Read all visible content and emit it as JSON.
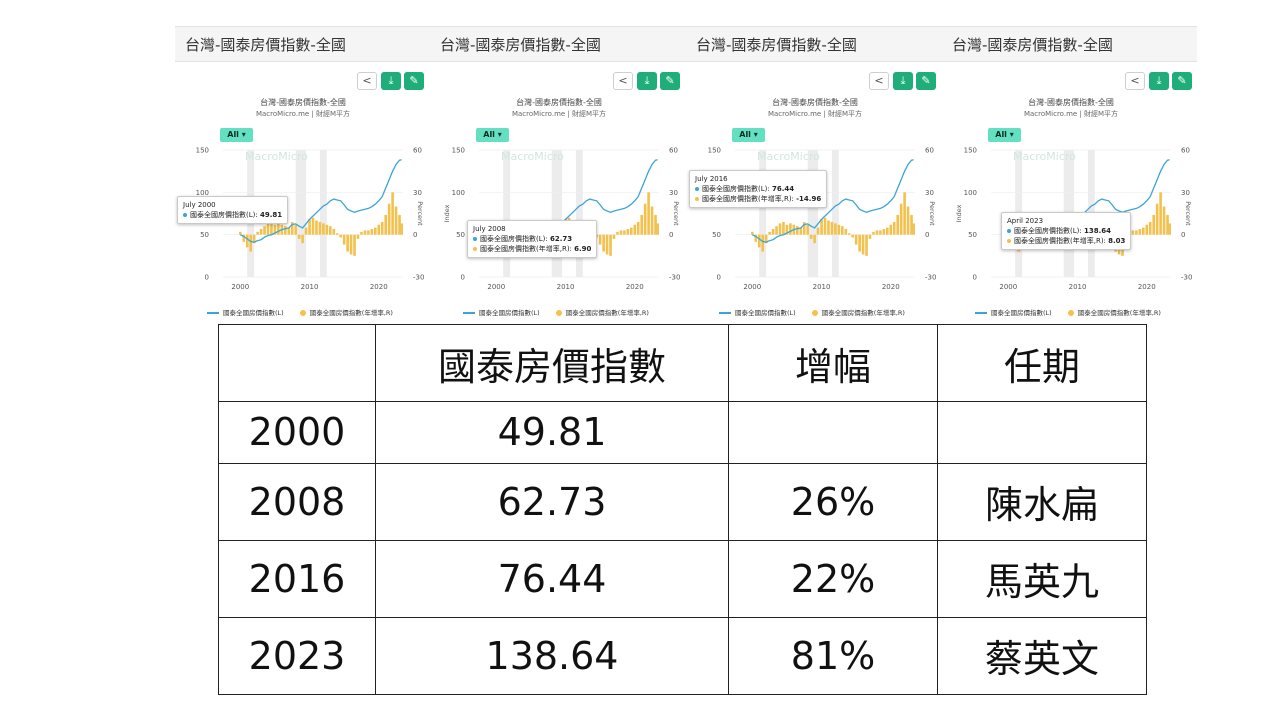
{
  "panels": [
    {
      "header": "台灣-國泰房價指數-全國",
      "title": "台灣-國泰房價指數-全國",
      "source": "MacroMicro.me | 財經M平方",
      "all_label": "All ▾",
      "watermark": "MacroMicro",
      "tooltip": {
        "date": "July 2000",
        "line1_label": "國泰全國房價指數(L):",
        "line1_value": "49.81"
      },
      "legend": {
        "line": "國泰全國房價指數(L)",
        "bar": "國泰全國房價指數(年增率,R)"
      },
      "left_axis_label": "",
      "right_axis_label": "Percent"
    },
    {
      "header": "台灣-國泰房價指數-全國",
      "title": "台灣-國泰房價指數-全國",
      "source": "MacroMicro.me | 財經M平方",
      "all_label": "All ▾",
      "watermark": "MacroMicro",
      "tooltip": {
        "date": "July 2008",
        "line1_label": "國泰全國房價指數(L):",
        "line1_value": "62.73",
        "line2_label": "國泰全國房價指數(年增率,R):",
        "line2_value": "6.90"
      },
      "legend": {
        "line": "國泰全國房價指數(L)",
        "bar": "國泰全國房價指數(年增率,R)"
      },
      "left_axis_label": "Index",
      "right_axis_label": "Percent"
    },
    {
      "header": "台灣-國泰房價指數-全國",
      "title": "台灣-國泰房價指數-全國",
      "source": "MacroMicro.me | 財經M平方",
      "all_label": "All ▾",
      "watermark": "MacroMicro",
      "tooltip": {
        "date": "July 2016",
        "line1_label": "國泰全國房價指數(L):",
        "line1_value": "76.44",
        "line2_label": "國泰全國房價指數(年增率,R):",
        "line2_value": "-14.96"
      },
      "legend": {
        "line": "國泰全國房價指數(L)",
        "bar": "國泰全國房價指數(年增率,R)"
      },
      "left_axis_label": "",
      "right_axis_label": "Percent"
    },
    {
      "header": "台灣-國泰房價指數-全國",
      "title": "台灣-國泰房價指數-全國",
      "source": "MacroMicro.me | 財經M平方",
      "all_label": "All ▾",
      "watermark": "MacroMicro",
      "tooltip": {
        "date": "April 2023",
        "line1_label": "國泰全國房價指數(L):",
        "line1_value": "138.64",
        "line2_label": "國泰全國房價指數(年增率,R):",
        "line2_value": "8.03"
      },
      "legend": {
        "line": "國泰全國房價指數(L)",
        "bar": "國泰全國房價指數(年增率,R)"
      },
      "left_axis_label": "Index",
      "right_axis_label": "Percent"
    }
  ],
  "table": {
    "header": [
      "",
      "國泰房價指數",
      "增幅",
      "任期"
    ],
    "rows": [
      [
        "2000",
        "49.81",
        "",
        ""
      ],
      [
        "2008",
        "62.73",
        "26%",
        "陳水扁"
      ],
      [
        "2016",
        "76.44",
        "22%",
        "馬英九"
      ],
      [
        "2023",
        "138.64",
        "81%",
        "蔡英文"
      ]
    ]
  },
  "chart_data": {
    "type": "line",
    "title": "台灣-國泰房價指數-全國",
    "x_ticks": [
      2000,
      2010,
      2020
    ],
    "left_ticks": [
      0,
      50,
      100,
      150
    ],
    "right_ticks": [
      -30,
      0,
      30,
      60
    ],
    "ylim_left": [
      0,
      150
    ],
    "ylim_right": [
      -30,
      60
    ],
    "series": [
      {
        "name": "國泰全國房價指數(L)",
        "axis": "left",
        "color": "#3aa6d8",
        "x": [
          2000.0,
          2000.5,
          2001.0,
          2001.5,
          2002.0,
          2002.5,
          2003.0,
          2003.5,
          2004.0,
          2004.5,
          2005.0,
          2005.5,
          2006.0,
          2006.5,
          2007.0,
          2007.5,
          2008.0,
          2008.5,
          2009.0,
          2009.5,
          2010.0,
          2010.5,
          2011.0,
          2011.5,
          2012.0,
          2012.5,
          2013.0,
          2013.5,
          2014.0,
          2014.5,
          2015.0,
          2015.5,
          2016.0,
          2016.5,
          2017.0,
          2017.5,
          2018.0,
          2018.5,
          2019.0,
          2019.5,
          2020.0,
          2020.5,
          2021.0,
          2021.5,
          2022.0,
          2022.5,
          2023.0,
          2023.3
        ],
        "y": [
          49.8,
          48,
          45,
          42,
          41,
          43,
          44,
          47,
          49,
          50,
          52,
          54,
          56,
          57,
          58,
          62,
          62.7,
          60,
          58,
          63,
          68,
          72,
          76,
          80,
          84,
          86,
          90,
          92,
          91,
          90,
          85,
          80,
          78,
          76.4,
          78,
          79,
          80,
          81,
          83,
          86,
          90,
          95,
          105,
          115,
          125,
          133,
          138,
          138.6
        ]
      },
      {
        "name": "國泰全國房價指數(年增率,R)",
        "axis": "right",
        "color": "#f2c14e",
        "type": "bar",
        "x": [
          2000.0,
          2000.5,
          2001.0,
          2001.5,
          2002.0,
          2002.5,
          2003.0,
          2003.5,
          2004.0,
          2004.5,
          2005.0,
          2005.5,
          2006.0,
          2006.5,
          2007.0,
          2007.5,
          2008.0,
          2008.5,
          2009.0,
          2009.5,
          2010.0,
          2010.5,
          2011.0,
          2011.5,
          2012.0,
          2012.5,
          2013.0,
          2013.5,
          2014.0,
          2014.5,
          2015.0,
          2015.5,
          2016.0,
          2016.5,
          2017.0,
          2017.5,
          2018.0,
          2018.5,
          2019.0,
          2019.5,
          2020.0,
          2020.5,
          2021.0,
          2021.5,
          2022.0,
          2022.5,
          2023.0,
          2023.3
        ],
        "y": [
          2,
          -5,
          -9,
          -12,
          -6,
          2,
          4,
          6,
          8,
          9,
          7,
          8,
          7,
          6,
          5,
          9,
          6.9,
          -3,
          -6,
          5,
          11,
          12,
          10,
          9,
          8,
          7,
          6,
          4,
          1,
          -2,
          -7,
          -12,
          -14,
          -15,
          -3,
          2,
          3,
          3,
          4,
          5,
          7,
          9,
          14,
          22,
          30,
          20,
          14,
          8
        ]
      }
    ],
    "shaded_periods": [
      [
        2001.0,
        2002.0
      ],
      [
        2008.0,
        2009.5
      ],
      [
        2011.5,
        2012.5
      ]
    ]
  }
}
